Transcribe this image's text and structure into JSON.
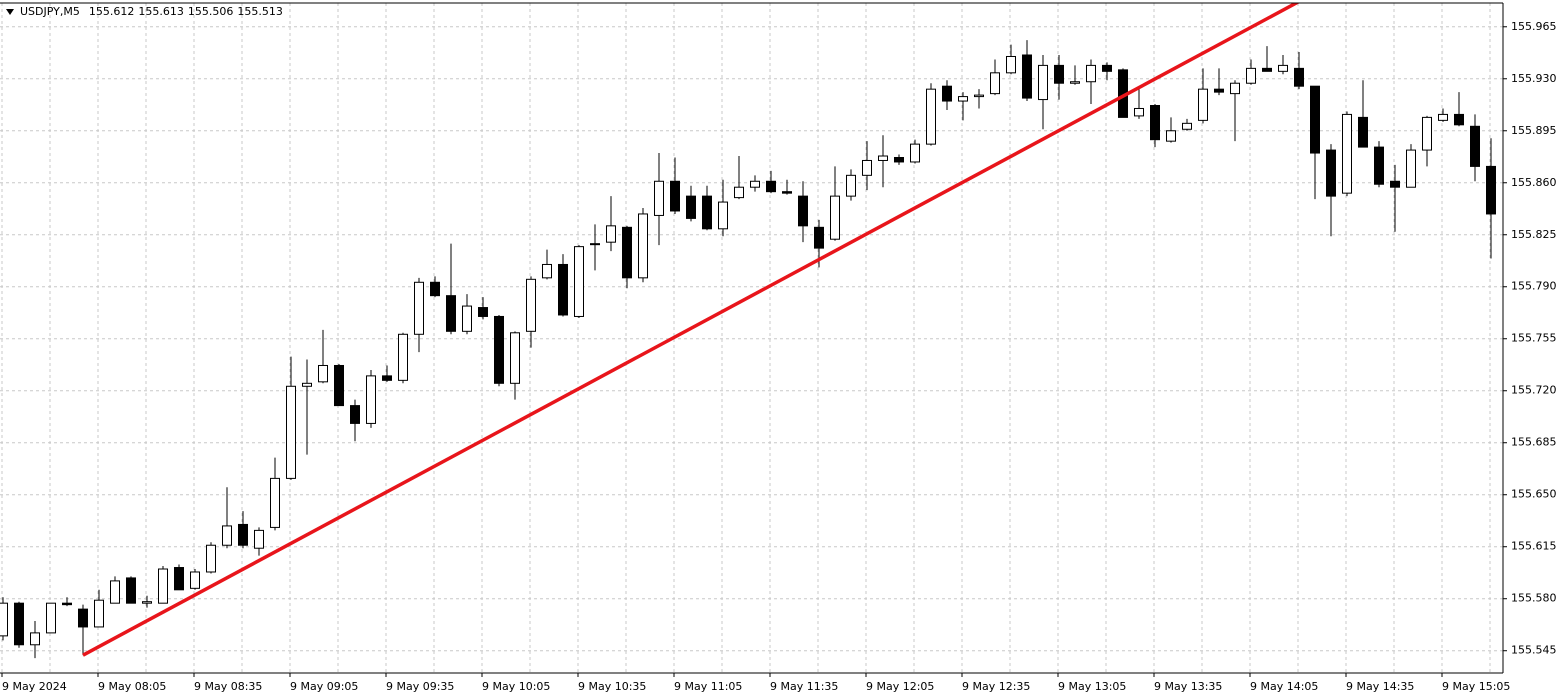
{
  "chart_data": {
    "type": "candlestick",
    "title": "USDJPY,M5",
    "header_values": [
      155.612,
      155.613,
      155.506,
      155.513
    ],
    "categories": [
      "9 May 2024",
      null,
      null,
      null,
      null,
      null,
      "9 May 08:05",
      null,
      null,
      null,
      null,
      null,
      "9 May 08:35",
      null,
      null,
      null,
      null,
      null,
      "9 May 09:05",
      null,
      null,
      null,
      null,
      null,
      "9 May 09:35",
      null,
      null,
      null,
      null,
      null,
      "9 May 10:05",
      null,
      null,
      null,
      null,
      null,
      "9 May 10:35",
      null,
      null,
      null,
      null,
      null,
      "9 May 11:05",
      null,
      null,
      null,
      null,
      null,
      "9 May 11:35",
      null,
      null,
      null,
      null,
      null,
      "9 May 12:05",
      null,
      null,
      null,
      null,
      null,
      "9 May 12:35",
      null,
      null,
      null,
      null,
      null,
      "9 May 13:05",
      null,
      null,
      null,
      null,
      null,
      "9 May 13:35",
      null,
      null,
      null,
      null,
      null,
      "9 May 14:05",
      null,
      null,
      null,
      null,
      null,
      "9 May 14:35",
      null,
      null,
      null,
      null,
      null,
      "9 May 15:05",
      null,
      null,
      null
    ],
    "open": [
      155.555,
      155.577,
      155.549,
      155.557,
      155.577,
      155.573,
      155.561,
      155.577,
      155.594,
      155.577,
      155.577,
      155.601,
      155.587,
      155.598,
      155.616,
      155.63,
      155.614,
      155.628,
      155.661,
      155.723,
      155.726,
      155.737,
      155.71,
      155.698,
      155.73,
      155.727,
      155.758,
      155.793,
      155.784,
      155.76,
      155.776,
      155.77,
      155.725,
      155.76,
      155.796,
      155.805,
      155.77,
      155.819,
      155.82,
      155.83,
      155.796,
      155.838,
      155.861,
      155.851,
      155.851,
      155.829,
      155.85,
      155.857,
      155.861,
      155.854,
      155.851,
      155.83,
      155.822,
      155.851,
      155.865,
      155.875,
      155.877,
      155.874,
      155.886,
      155.925,
      155.915,
      155.918,
      155.92,
      155.934,
      155.946,
      155.916,
      155.939,
      155.927,
      155.928,
      155.939,
      155.936,
      155.905,
      155.912,
      155.888,
      155.896,
      155.902,
      155.923,
      155.92,
      155.927,
      155.937,
      155.935,
      155.937,
      155.925,
      155.882,
      155.853,
      155.904,
      155.884,
      155.861,
      155.857,
      155.882,
      155.902,
      155.906,
      155.898,
      155.871
    ],
    "high": [
      155.581,
      155.578,
      155.565,
      155.577,
      155.581,
      155.576,
      155.586,
      155.595,
      155.595,
      155.582,
      155.602,
      155.603,
      155.6,
      155.618,
      155.655,
      155.639,
      155.628,
      155.675,
      155.743,
      155.741,
      155.761,
      155.738,
      155.714,
      155.734,
      155.737,
      155.759,
      155.796,
      155.797,
      155.819,
      155.785,
      155.783,
      155.771,
      155.76,
      155.797,
      155.815,
      155.812,
      155.818,
      155.832,
      155.851,
      155.831,
      155.843,
      155.88,
      155.877,
      155.858,
      155.858,
      155.862,
      155.878,
      155.865,
      155.868,
      155.862,
      155.861,
      155.835,
      155.871,
      155.869,
      155.888,
      155.892,
      155.879,
      155.889,
      155.927,
      155.929,
      155.921,
      155.923,
      155.943,
      155.953,
      155.956,
      155.946,
      155.946,
      155.939,
      155.943,
      155.941,
      155.937,
      155.923,
      155.913,
      155.904,
      155.903,
      155.937,
      155.937,
      155.929,
      155.943,
      155.952,
      155.946,
      155.948,
      155.925,
      155.886,
      155.908,
      155.929,
      155.888,
      155.872,
      155.886,
      155.905,
      155.91,
      155.921,
      155.906,
      155.89
    ],
    "low": [
      155.552,
      155.547,
      155.54,
      155.557,
      155.575,
      155.542,
      155.561,
      155.577,
      155.577,
      155.574,
      155.577,
      155.586,
      155.586,
      155.597,
      155.614,
      155.614,
      155.609,
      155.626,
      155.66,
      155.677,
      155.725,
      155.71,
      155.686,
      155.695,
      155.726,
      155.725,
      155.746,
      155.783,
      155.758,
      155.758,
      155.768,
      155.723,
      155.714,
      155.749,
      155.795,
      155.77,
      155.769,
      155.801,
      155.814,
      155.789,
      155.793,
      155.818,
      155.839,
      155.834,
      155.828,
      155.824,
      155.849,
      155.854,
      155.853,
      155.852,
      155.82,
      155.803,
      155.821,
      155.848,
      155.855,
      155.857,
      155.872,
      155.873,
      155.885,
      155.909,
      155.902,
      155.91,
      155.919,
      155.933,
      155.915,
      155.896,
      155.916,
      155.926,
      155.913,
      155.929,
      155.904,
      155.903,
      155.884,
      155.887,
      155.895,
      155.9,
      155.919,
      155.888,
      155.926,
      155.935,
      155.933,
      155.923,
      155.849,
      155.824,
      155.851,
      155.884,
      155.857,
      155.827,
      155.857,
      155.871,
      155.901,
      155.898,
      155.861,
      155.809
    ],
    "close": [
      155.577,
      155.549,
      155.557,
      155.577,
      155.576,
      155.561,
      155.579,
      155.592,
      155.577,
      155.578,
      155.6,
      155.586,
      155.598,
      155.616,
      155.629,
      155.616,
      155.626,
      155.661,
      155.723,
      155.725,
      155.737,
      155.71,
      155.698,
      155.73,
      155.727,
      155.758,
      155.793,
      155.784,
      155.76,
      155.777,
      155.77,
      155.725,
      155.759,
      155.795,
      155.805,
      155.771,
      155.817,
      155.819,
      155.831,
      155.796,
      155.839,
      155.861,
      155.841,
      155.836,
      155.829,
      155.847,
      155.857,
      155.861,
      155.854,
      155.853,
      155.831,
      155.816,
      155.851,
      155.865,
      155.875,
      155.878,
      155.874,
      155.886,
      155.923,
      155.915,
      155.918,
      155.919,
      155.934,
      155.945,
      155.917,
      155.939,
      155.927,
      155.928,
      155.939,
      155.935,
      155.904,
      155.91,
      155.889,
      155.895,
      155.9,
      155.923,
      155.921,
      155.927,
      155.937,
      155.935,
      155.939,
      155.925,
      155.88,
      155.851,
      155.906,
      155.884,
      155.859,
      155.857,
      155.882,
      155.904,
      155.906,
      155.899,
      155.871,
      155.839
    ],
    "bull_color": "#ffffff",
    "bear_color": "#000000",
    "outline_color": "#000000",
    "ylim": [
      155.53,
      155.981
    ],
    "yticks": [
      155.545,
      {
        "value": 155.58,
        "label": "155.580"
      },
      155.615,
      {
        "value": 155.65,
        "label": "155.650"
      },
      155.685,
      {
        "value": 155.72,
        "label": "155.720"
      },
      155.755,
      {
        "value": 155.79,
        "label": "155.790"
      },
      155.825,
      {
        "value": 155.86,
        "label": "155.860"
      },
      155.895,
      {
        "value": 155.93,
        "label": "155.930"
      },
      155.965
    ],
    "grid": true,
    "trendline": {
      "color": "#e8151b",
      "from": {
        "index": 5,
        "price": 155.542
      },
      "to": {
        "index": 81,
        "price": 155.982
      }
    }
  }
}
